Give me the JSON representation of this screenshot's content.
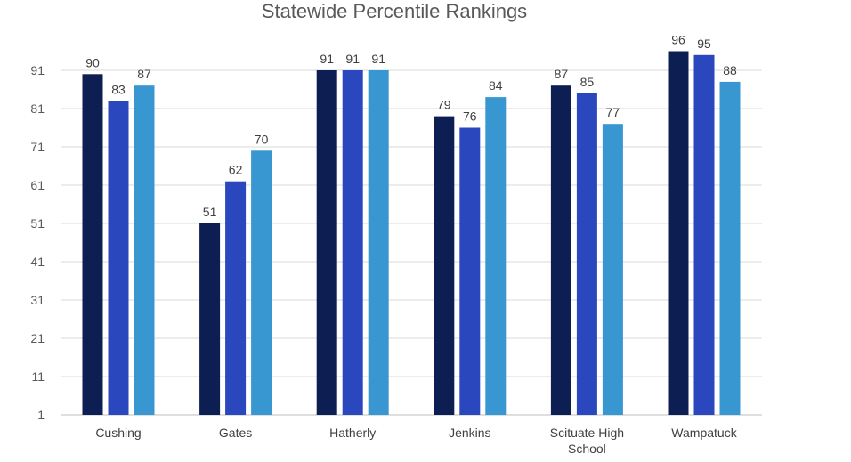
{
  "chart_data": {
    "type": "bar",
    "title": "Statewide Percentile Rankings",
    "xlabel": "",
    "ylabel": "",
    "ylim": [
      1,
      101
    ],
    "yticks": [
      1,
      11,
      21,
      31,
      41,
      51,
      61,
      71,
      81,
      91
    ],
    "grid": true,
    "legend": "none",
    "categories": [
      [
        "Cushing"
      ],
      [
        "Gates"
      ],
      [
        "Hatherly"
      ],
      [
        "Jenkins"
      ],
      [
        "Scituate High",
        "School"
      ],
      [
        "Wampatuck"
      ]
    ],
    "series": [
      {
        "color": "#0c1e52",
        "values": [
          90,
          51,
          91,
          79,
          87,
          96
        ]
      },
      {
        "color": "#2a47bd",
        "values": [
          83,
          62,
          91,
          76,
          85,
          95
        ]
      },
      {
        "color": "#3896d0",
        "values": [
          87,
          70,
          91,
          84,
          77,
          88
        ]
      }
    ]
  }
}
